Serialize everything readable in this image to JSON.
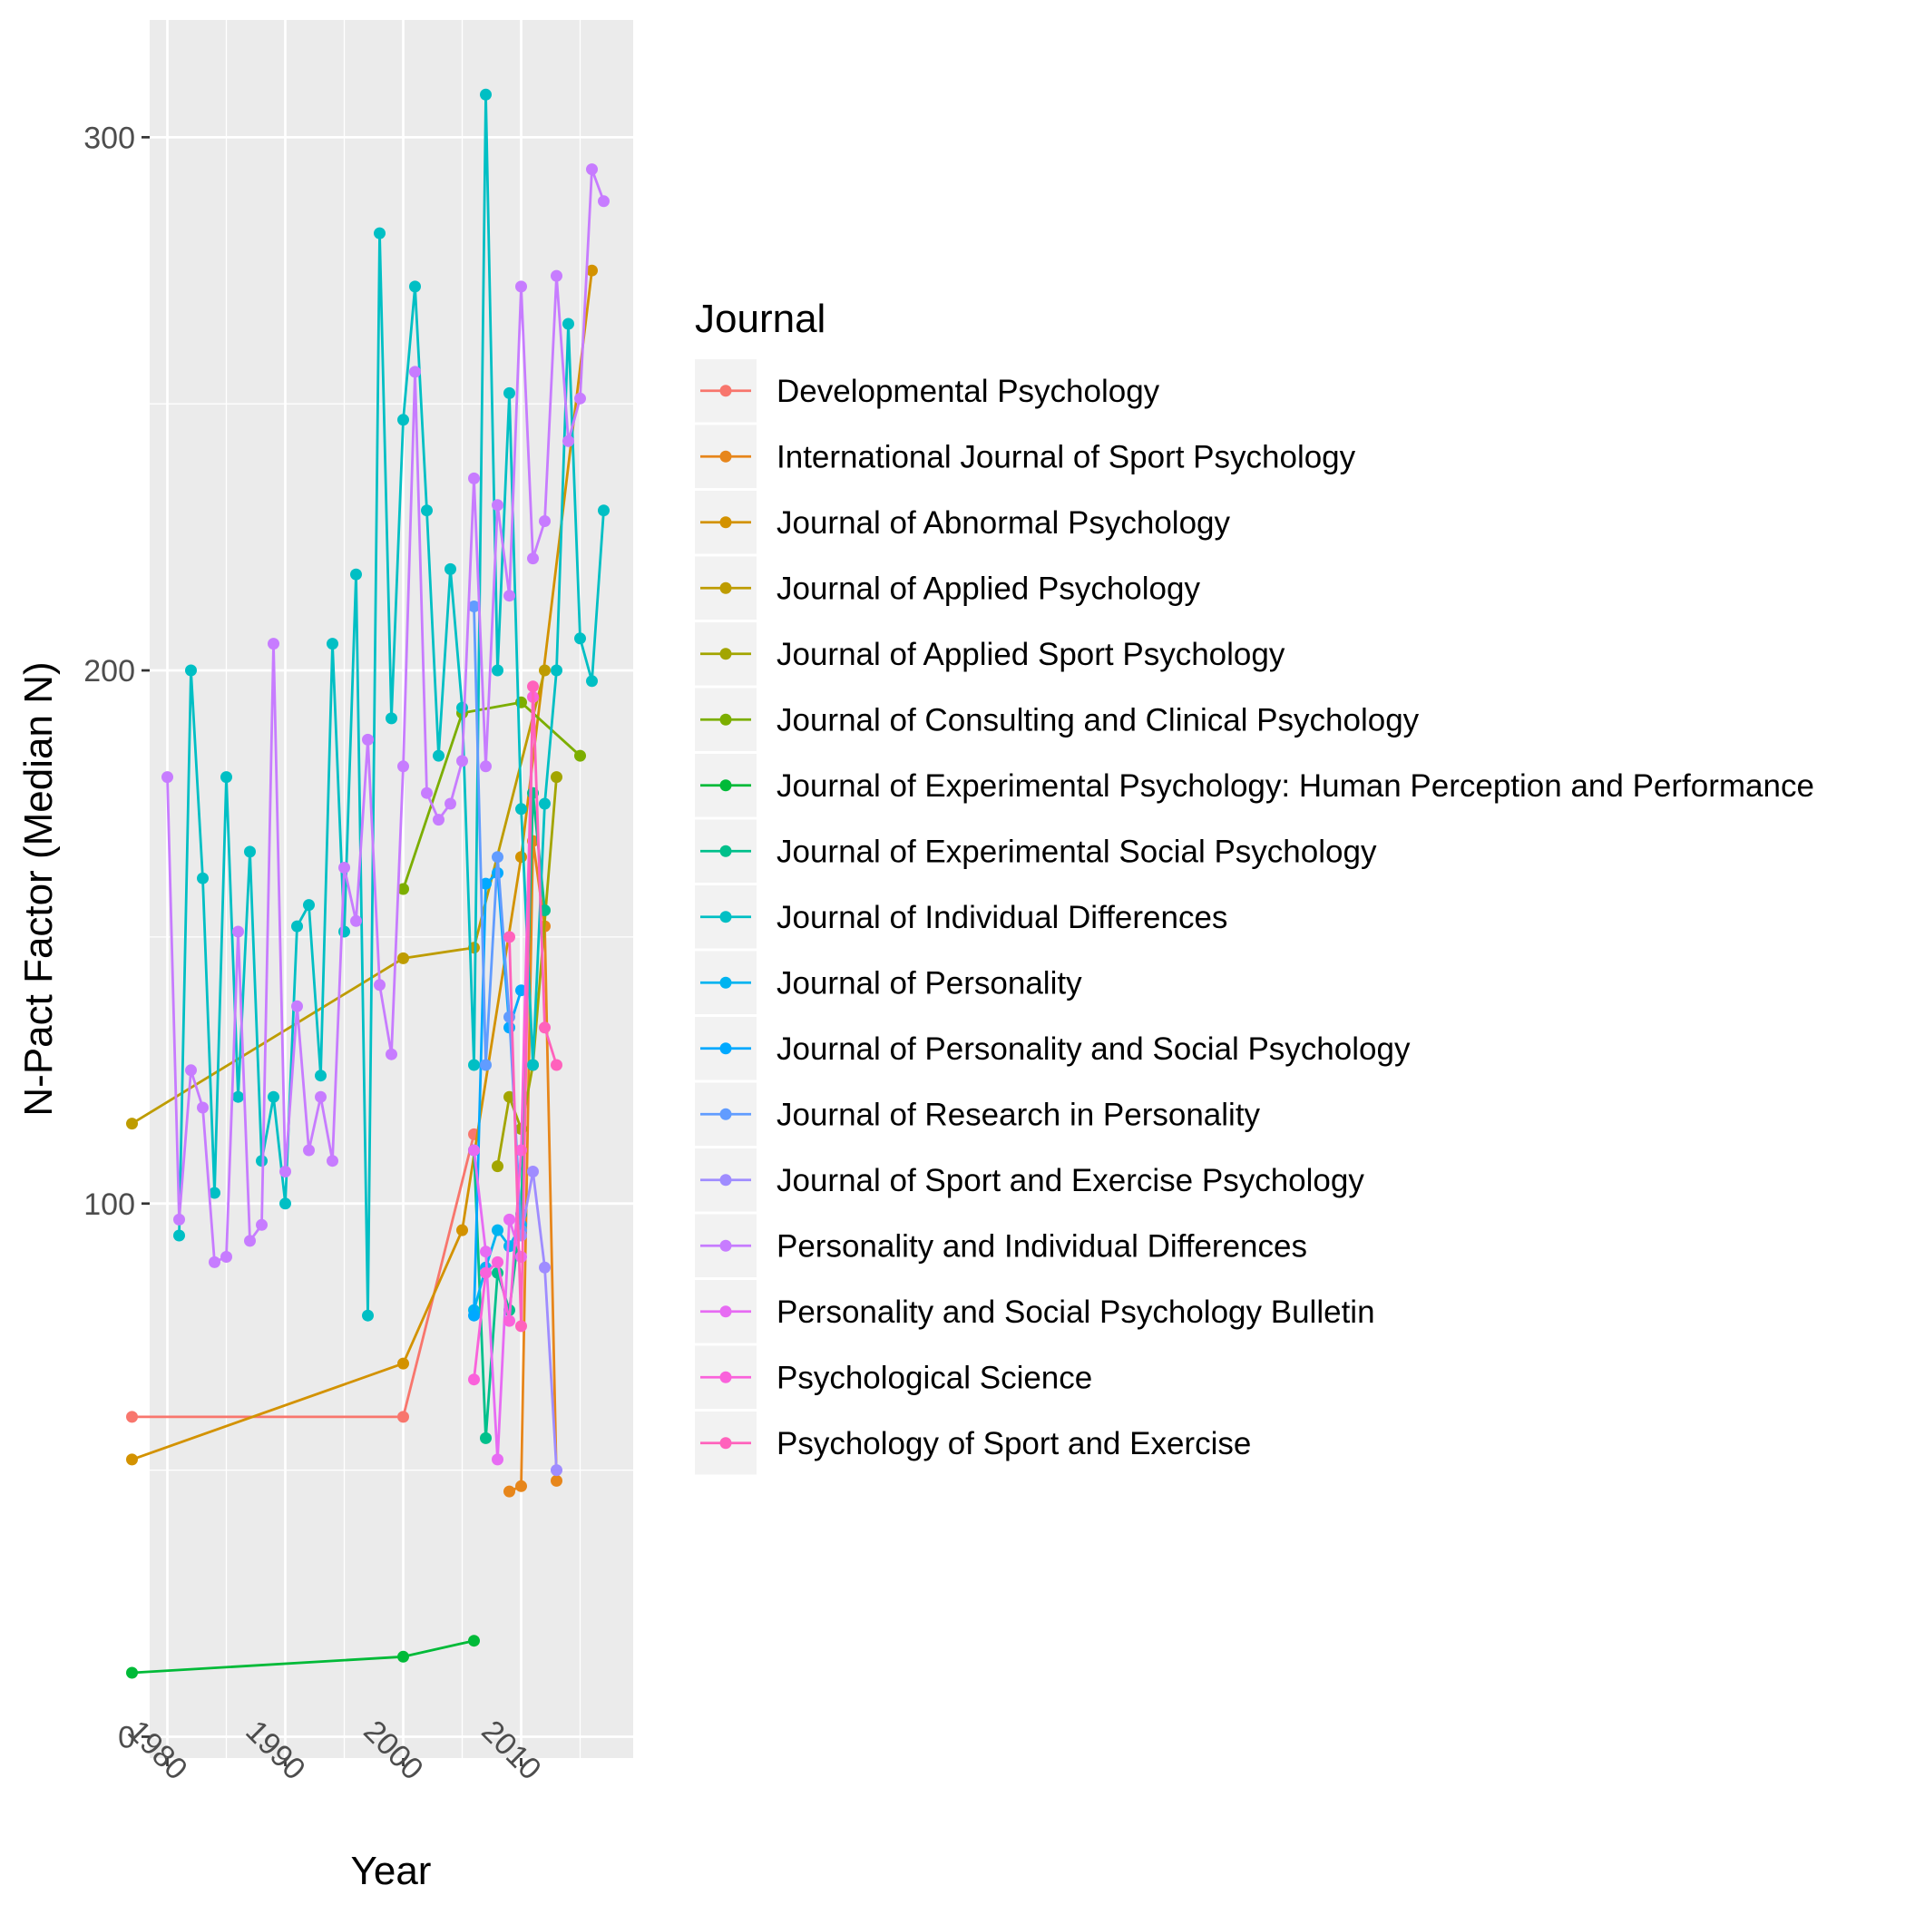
{
  "chart_data": {
    "type": "line",
    "xlabel": "Year",
    "ylabel": "N-Pact Factor (Median N)",
    "xlim": [
      1978.5,
      2019.5
    ],
    "ylim": [
      -4,
      322
    ],
    "x_ticks": [
      1980,
      1990,
      2000,
      2010
    ],
    "x_tick_labels": [
      "1980",
      "1990",
      "2000",
      "2010"
    ],
    "y_ticks": [
      0,
      100,
      200,
      300
    ],
    "y_tick_labels": [
      "0",
      "100",
      "200",
      "300"
    ],
    "grid": true,
    "legend": {
      "title": "Journal",
      "position": "right"
    },
    "series": [
      {
        "name": "Developmental Psychology",
        "color": "#F8766D",
        "points": [
          [
            1977,
            60
          ],
          [
            2000,
            60
          ],
          [
            2006,
            113
          ]
        ]
      },
      {
        "name": "International Journal of Sport Psychology",
        "color": "#E7861B",
        "points": [
          [
            2009,
            46
          ],
          [
            2010,
            47
          ],
          [
            2011,
            168
          ],
          [
            2012,
            152
          ],
          [
            2013,
            48
          ]
        ]
      },
      {
        "name": "Journal of Abnormal Psychology",
        "color": "#D39200",
        "points": [
          [
            1977,
            52
          ],
          [
            2000,
            70
          ],
          [
            2005,
            95
          ],
          [
            2010,
            165
          ],
          [
            2016,
            275
          ]
        ]
      },
      {
        "name": "Journal of Applied Psychology",
        "color": "#BE9C00",
        "points": [
          [
            1977,
            115
          ],
          [
            2000,
            146
          ],
          [
            2006,
            148
          ],
          [
            2012,
            200
          ]
        ]
      },
      {
        "name": "Journal of Applied Sport Psychology",
        "color": "#A3A500",
        "points": [
          [
            2008,
            107
          ],
          [
            2009,
            120
          ],
          [
            2010,
            114
          ],
          [
            2011,
            126
          ],
          [
            2013,
            180
          ]
        ]
      },
      {
        "name": "Journal of Consulting and Clinical Psychology",
        "color": "#7CAE00",
        "points": [
          [
            2000,
            159
          ],
          [
            2005,
            192
          ],
          [
            2010,
            194
          ],
          [
            2015,
            184
          ]
        ]
      },
      {
        "name": "Journal of Experimental Psychology: Human Perception and Performance",
        "color": "#00BA38",
        "points": [
          [
            1977,
            12
          ],
          [
            2000,
            15
          ],
          [
            2006,
            18
          ]
        ]
      },
      {
        "name": "Journal of Experimental Social Psychology",
        "color": "#00C08B",
        "points": [
          [
            2006,
            110
          ],
          [
            2007,
            56
          ],
          [
            2008,
            87
          ],
          [
            2009,
            80
          ],
          [
            2010,
            98
          ],
          [
            2011,
            177
          ],
          [
            2012,
            155
          ]
        ]
      },
      {
        "name": "Journal of Individual Differences",
        "color": "#00BFC4",
        "points": [
          [
            1981,
            94
          ],
          [
            1982,
            200
          ],
          [
            1983,
            161
          ],
          [
            1984,
            102
          ],
          [
            1985,
            180
          ],
          [
            1986,
            120
          ],
          [
            1987,
            166
          ],
          [
            1988,
            108
          ],
          [
            1989,
            120
          ],
          [
            1990,
            100
          ],
          [
            1991,
            152
          ],
          [
            1992,
            156
          ],
          [
            1993,
            124
          ],
          [
            1994,
            205
          ],
          [
            1995,
            151
          ],
          [
            1996,
            218
          ],
          [
            1997,
            79
          ],
          [
            1998,
            282
          ],
          [
            1999,
            191
          ],
          [
            2000,
            247
          ],
          [
            2001,
            272
          ],
          [
            2002,
            230
          ],
          [
            2003,
            184
          ],
          [
            2004,
            219
          ],
          [
            2005,
            193
          ],
          [
            2006,
            126
          ],
          [
            2007,
            308
          ],
          [
            2008,
            200
          ],
          [
            2009,
            252
          ],
          [
            2010,
            174
          ],
          [
            2011,
            126
          ],
          [
            2012,
            175
          ],
          [
            2013,
            200
          ],
          [
            2014,
            265
          ],
          [
            2015,
            206
          ],
          [
            2016,
            198
          ],
          [
            2017,
            230
          ]
        ]
      },
      {
        "name": "Journal of Personality",
        "color": "#00B4F0",
        "points": [
          [
            2006,
            80
          ],
          [
            2007,
            88
          ],
          [
            2008,
            95
          ],
          [
            2009,
            92
          ],
          [
            2010,
            96
          ]
        ]
      },
      {
        "name": "Journal of Personality and Social Psychology",
        "color": "#00A9FF",
        "points": [
          [
            2006,
            79
          ],
          [
            2007,
            160
          ],
          [
            2008,
            162
          ],
          [
            2009,
            133
          ],
          [
            2010,
            140
          ]
        ]
      },
      {
        "name": "Journal of Research in Personality",
        "color": "#619CFF",
        "points": [
          [
            2006,
            212
          ],
          [
            2007,
            126
          ],
          [
            2008,
            165
          ],
          [
            2009,
            135
          ],
          [
            2010,
            95
          ]
        ]
      },
      {
        "name": "Journal of Sport and Exercise Psychology",
        "color": "#9F8CFF",
        "points": [
          [
            2010,
            94
          ],
          [
            2011,
            106
          ],
          [
            2012,
            88
          ],
          [
            2013,
            50
          ]
        ]
      },
      {
        "name": "Personality and Individual Differences",
        "color": "#C77CFF",
        "points": [
          [
            1980,
            180
          ],
          [
            1981,
            97
          ],
          [
            1982,
            125
          ],
          [
            1983,
            118
          ],
          [
            1984,
            89
          ],
          [
            1985,
            90
          ],
          [
            1986,
            151
          ],
          [
            1987,
            93
          ],
          [
            1988,
            96
          ],
          [
            1989,
            205
          ],
          [
            1990,
            106
          ],
          [
            1991,
            137
          ],
          [
            1992,
            110
          ],
          [
            1993,
            120
          ],
          [
            1994,
            108
          ],
          [
            1995,
            163
          ],
          [
            1996,
            153
          ],
          [
            1997,
            187
          ],
          [
            1998,
            141
          ],
          [
            1999,
            128
          ],
          [
            2000,
            182
          ],
          [
            2001,
            256
          ],
          [
            2002,
            177
          ],
          [
            2003,
            172
          ],
          [
            2004,
            175
          ],
          [
            2005,
            183
          ],
          [
            2006,
            236
          ],
          [
            2007,
            182
          ],
          [
            2008,
            231
          ],
          [
            2009,
            214
          ],
          [
            2010,
            272
          ],
          [
            2011,
            221
          ],
          [
            2012,
            228
          ],
          [
            2013,
            274
          ],
          [
            2014,
            243
          ],
          [
            2015,
            251
          ],
          [
            2016,
            294
          ],
          [
            2017,
            288
          ]
        ]
      },
      {
        "name": "Personality and Social Psychology Bulletin",
        "color": "#E76BF3",
        "points": [
          [
            2006,
            110
          ],
          [
            2007,
            91
          ],
          [
            2008,
            52
          ],
          [
            2009,
            97
          ],
          [
            2010,
            90
          ]
        ]
      },
      {
        "name": "Psychological Science",
        "color": "#FA62DB",
        "points": [
          [
            2006,
            67
          ],
          [
            2007,
            87
          ],
          [
            2008,
            89
          ],
          [
            2009,
            78
          ],
          [
            2010,
            110
          ],
          [
            2011,
            195
          ]
        ]
      },
      {
        "name": "Psychology of Sport and Exercise",
        "color": "#FF62BC",
        "points": [
          [
            2009,
            150
          ],
          [
            2010,
            77
          ],
          [
            2011,
            197
          ],
          [
            2012,
            133
          ],
          [
            2013,
            126
          ]
        ]
      }
    ]
  }
}
